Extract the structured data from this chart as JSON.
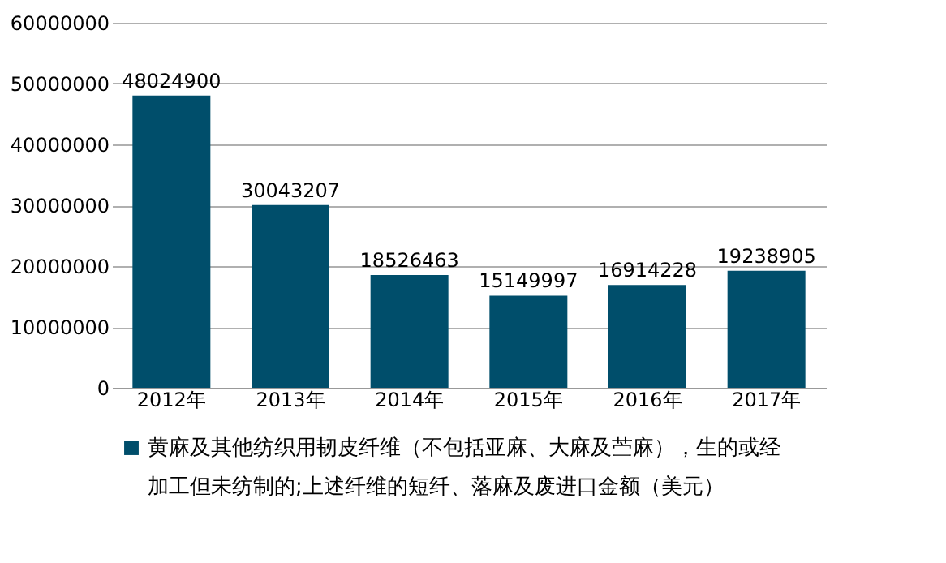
{
  "chart_data": {
    "type": "bar",
    "categories": [
      "2012年",
      "2013年",
      "2014年",
      "2015年",
      "2016年",
      "2017年"
    ],
    "series": [
      {
        "name": "黄麻及其他纺织用韧皮纤维（不包括亚麻、大麻及苎麻），生的或经加工但未纺制的;上述纤维的短纤、落麻及废进口金额（美元）",
        "color": "#004e6b",
        "values": [
          48024900,
          30043207,
          18526463,
          15149997,
          16914228,
          19238905
        ]
      }
    ],
    "ylim": [
      0,
      60000000
    ],
    "yticks": [
      0,
      10000000,
      20000000,
      30000000,
      40000000,
      50000000,
      60000000
    ],
    "grid": "y",
    "legend": "bottom",
    "data_labels": true
  }
}
